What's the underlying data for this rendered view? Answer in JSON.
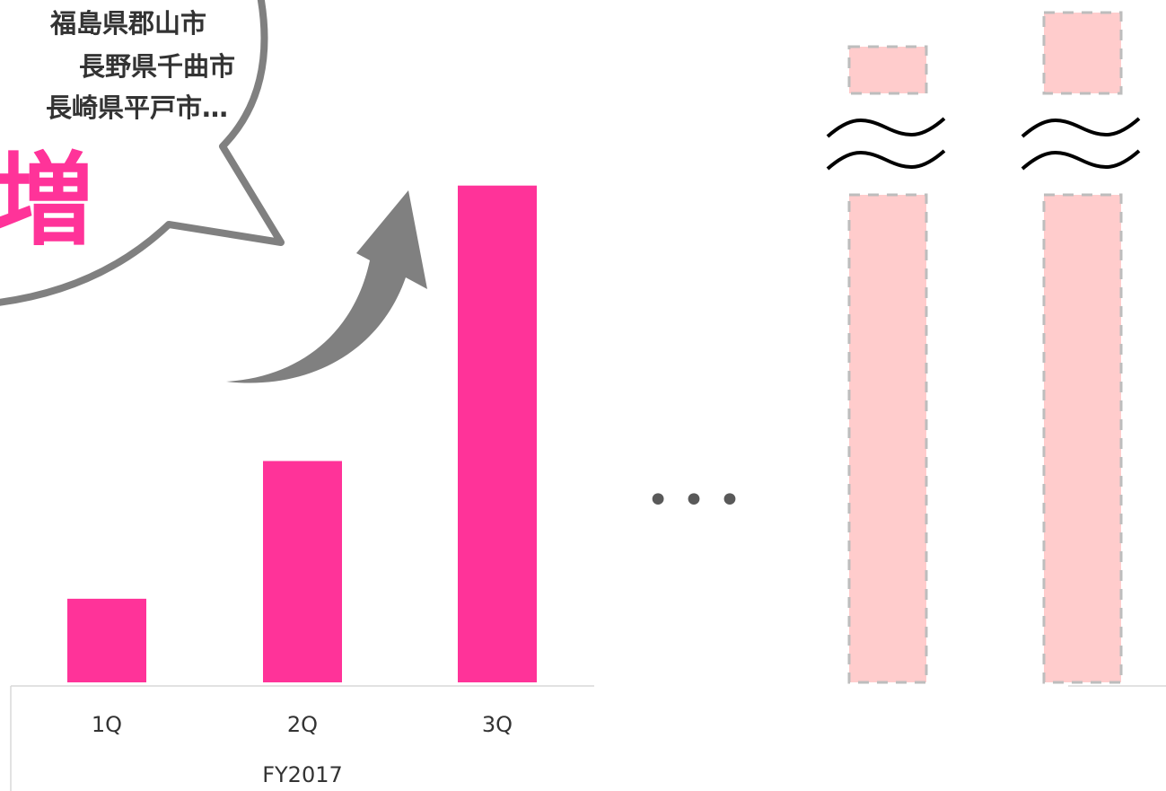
{
  "callout": {
    "lines": [
      "福島県郡山市",
      "長野県千曲市",
      "長崎県平戸市…"
    ],
    "headline": "増"
  },
  "ellipsis": "• • •",
  "colors": {
    "bar": "#ff3399",
    "bar_placeholder": "#ffcccc",
    "placeholder_border": "#bdbdbd",
    "arrow": "#808080",
    "bubble_stroke": "#808080",
    "text": "#333333"
  },
  "chart_data": {
    "type": "bar",
    "categories": [
      "1Q",
      "2Q",
      "3Q"
    ],
    "values": [
      17,
      45,
      101
    ],
    "group_label": "FY2017",
    "ylim": [
      0,
      115
    ],
    "grid": false,
    "projected_bars": {
      "count": 2,
      "axis_break": true,
      "labels": []
    }
  }
}
